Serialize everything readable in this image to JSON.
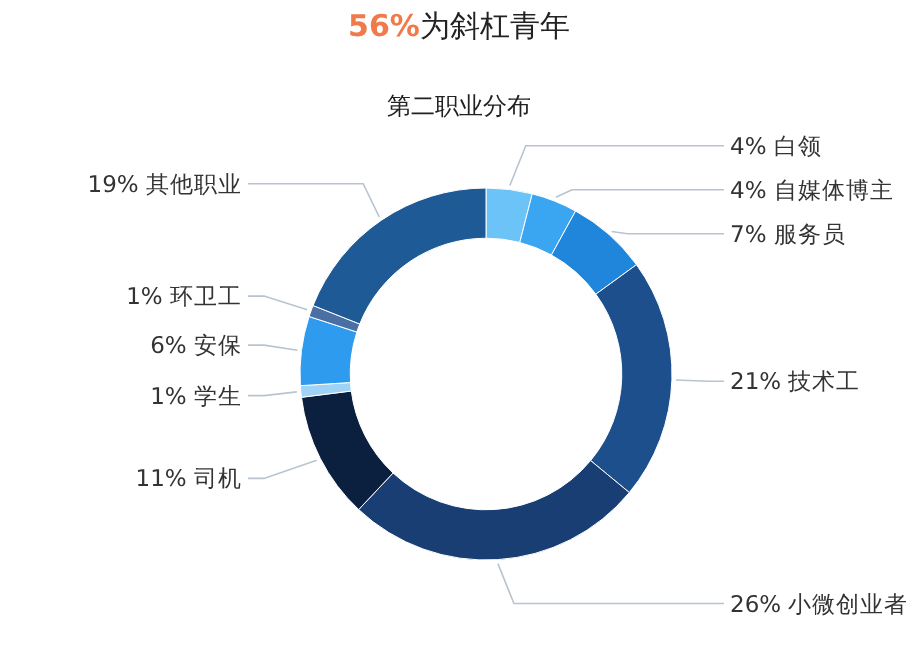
{
  "chart_data": {
    "type": "donut",
    "title": "56%为斜杠青年",
    "subtitle": "第二职业分布",
    "categories": [
      "白领",
      "自媒体博主",
      "服务员",
      "技术工",
      "小微创业者",
      "司机",
      "学生",
      "安保",
      "环卫工",
      "其他职业"
    ],
    "values": [
      4,
      4,
      7,
      21,
      26,
      11,
      1,
      6,
      1,
      19
    ],
    "value_labels": [
      "4%",
      "4%",
      "7%",
      "21%",
      "26%",
      "11%",
      "1%",
      "6%",
      "1%",
      "19%"
    ],
    "colors": [
      "#6cc3f7",
      "#3aa6f2",
      "#1f86dc",
      "#1d4f8c",
      "#183e73",
      "#0b1f3f",
      "#9fd3f5",
      "#2f9bef",
      "#4a6fa5",
      "#1e5a96"
    ]
  }
}
